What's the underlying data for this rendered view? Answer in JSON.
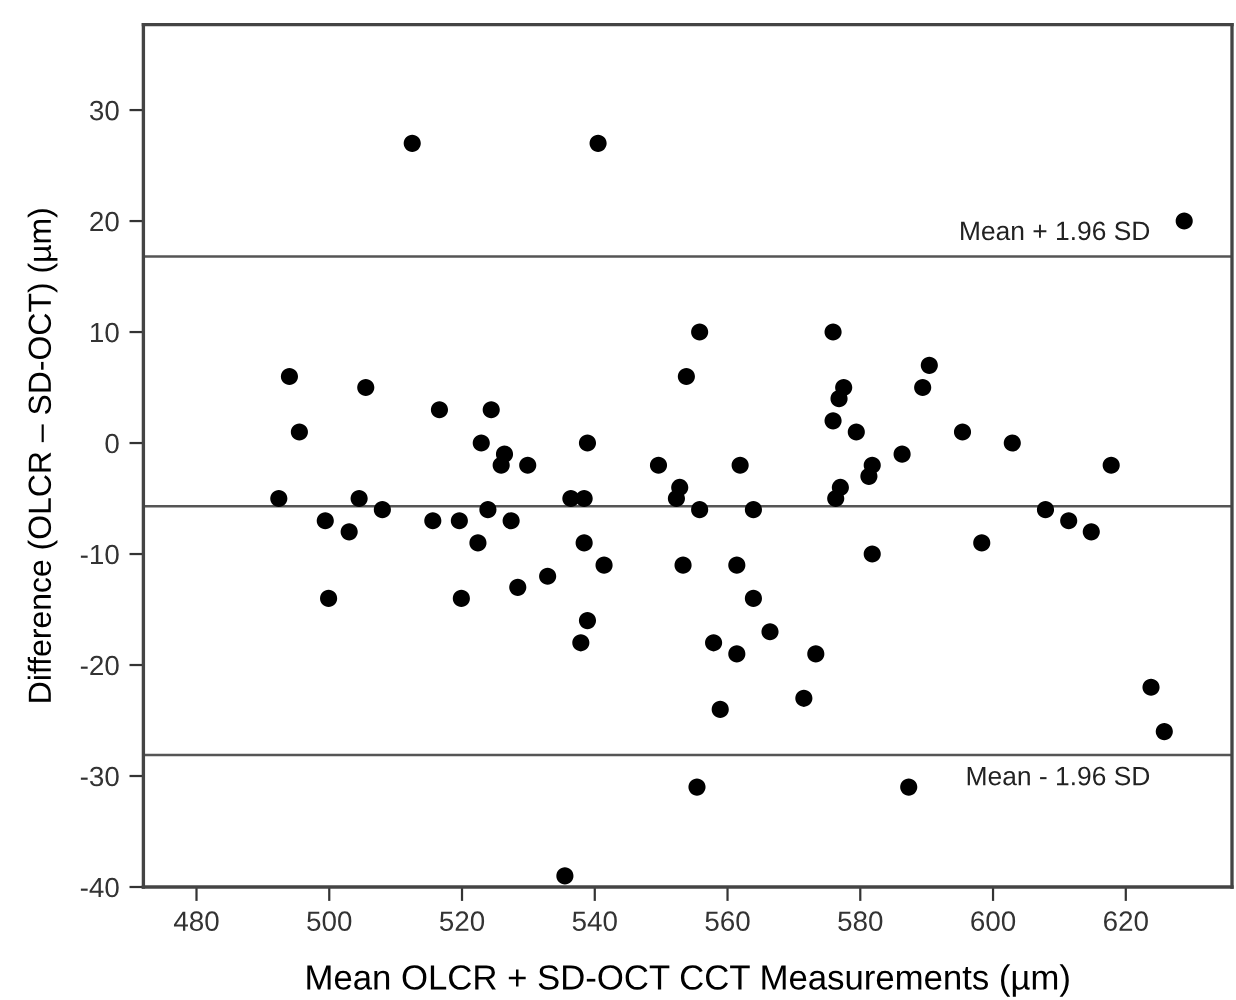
{
  "chart_data": {
    "type": "scatter",
    "xlabel": "Mean OLCR + SD-OCT CCT Measurements (µm)",
    "ylabel": "Difference (OLCR – SD-OCT) (µm)",
    "x": [
      512.5,
      540.5,
      494.0,
      495.5,
      505.5,
      516.6,
      524.4,
      522.9,
      526.4,
      525.9,
      529.9,
      538.9,
      549.6,
      492.4,
      499.4,
      499.9,
      503.0,
      504.5,
      508.0,
      515.6,
      519.6,
      519.9,
      522.4,
      523.9,
      527.4,
      528.4,
      532.9,
      536.4,
      538.4,
      538.4,
      538.9,
      537.9,
      541.4,
      535.5,
      628.8,
      555.8,
      553.8,
      575.9,
      577.5,
      576.8,
      575.9,
      579.4,
      590.4,
      589.4,
      595.4,
      602.9,
      561.9,
      581.8,
      581.3,
      586.3,
      617.8,
      552.8,
      577.0,
      552.3,
      576.3,
      555.8,
      563.9,
      607.9,
      611.4,
      614.8,
      598.3,
      581.8,
      553.3,
      561.4,
      563.9,
      566.4,
      557.9,
      561.4,
      573.3,
      571.5,
      558.9,
      623.8,
      625.8,
      555.4,
      587.3
    ],
    "values": [
      27,
      27,
      6,
      1,
      5,
      3,
      3,
      0,
      -1,
      -2,
      -2,
      0,
      -2,
      -5,
      -7,
      -14,
      -8,
      -5,
      -6,
      -7,
      -7,
      -14,
      -9,
      -6,
      -7,
      -13,
      -12,
      -5,
      -5,
      -9,
      -16,
      -18,
      -11,
      -39,
      20,
      10,
      6,
      10,
      5,
      4,
      2,
      1,
      7,
      5,
      1,
      0,
      -2,
      -2,
      -3,
      -1,
      -2,
      -4,
      -4,
      -5,
      -5,
      -6,
      -6,
      -6,
      -7,
      -8,
      -9,
      -10,
      -11,
      -11,
      -14,
      -17,
      -18,
      -19,
      -19,
      -23,
      -24,
      -22,
      -26,
      -31,
      -31
    ],
    "color": "#000000",
    "marker": "circle",
    "grid": false,
    "legend": false,
    "xlim": [
      472,
      636
    ],
    "xticks": [
      480,
      500,
      520,
      540,
      560,
      580,
      600,
      620
    ],
    "ylim": [
      -40,
      37.7
    ],
    "yticks": [
      -40,
      -30,
      -20,
      -10,
      0,
      10,
      20,
      30
    ],
    "ref_lines": [
      {
        "axis": "y",
        "value": 16.8,
        "label": "Mean + 1.96 SD",
        "color": "#555555"
      },
      {
        "axis": "y",
        "value": -5.7,
        "label": null,
        "color": "#555555"
      },
      {
        "axis": "y",
        "value": -28.1,
        "label": "Mean - 1.96 SD",
        "color": "#555555"
      }
    ]
  }
}
